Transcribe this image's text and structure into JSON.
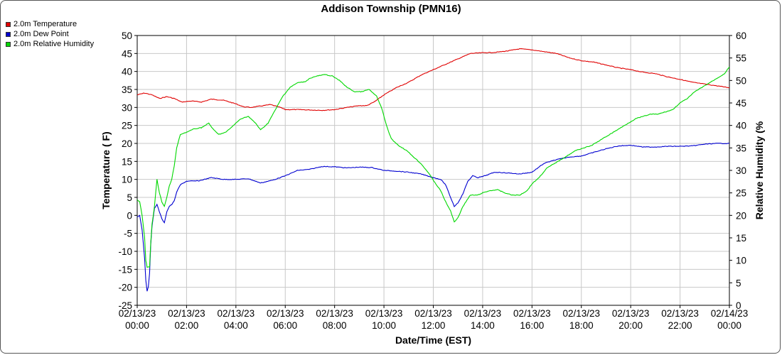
{
  "chart_data": {
    "type": "line",
    "title": "Addison Township (PMN16)",
    "xlabel": "Date/Time (EST)",
    "ylabel": "Temperature ( F)",
    "y2label": "Relative Humidity (%",
    "xlim_hours": [
      0,
      24
    ],
    "ylim": [
      -25,
      50
    ],
    "y2lim": [
      0,
      60
    ],
    "grid": true,
    "legend_position": "top-left",
    "x_tick_labels": [
      {
        "date": "02/13/23",
        "time": "00:00"
      },
      {
        "date": "02/13/23",
        "time": "02:00"
      },
      {
        "date": "02/13/23",
        "time": "04:00"
      },
      {
        "date": "02/13/23",
        "time": "06:00"
      },
      {
        "date": "02/13/23",
        "time": "08:00"
      },
      {
        "date": "02/13/23",
        "time": "10:00"
      },
      {
        "date": "02/13/23",
        "time": "12:00"
      },
      {
        "date": "02/13/23",
        "time": "14:00"
      },
      {
        "date": "02/13/23",
        "time": "16:00"
      },
      {
        "date": "02/13/23",
        "time": "18:00"
      },
      {
        "date": "02/13/23",
        "time": "20:00"
      },
      {
        "date": "02/13/23",
        "time": "22:00"
      },
      {
        "date": "02/14/23",
        "time": "00:00"
      }
    ],
    "y_ticks": [
      50,
      45,
      40,
      35,
      30,
      25,
      20,
      15,
      10,
      5,
      0,
      -5,
      -10,
      -15,
      -20,
      -25
    ],
    "y2_ticks": [
      60,
      55,
      50,
      45,
      40,
      35,
      30,
      25,
      20,
      15,
      10,
      5,
      0
    ],
    "series": [
      {
        "name": "2.0m Temperature",
        "color": "#e00000",
        "axis": "left",
        "points": [
          [
            0,
            33.5
          ],
          [
            0.3,
            34
          ],
          [
            0.6,
            33.5
          ],
          [
            0.9,
            32.5
          ],
          [
            1.2,
            33
          ],
          [
            1.5,
            32.5
          ],
          [
            1.8,
            31.5
          ],
          [
            2.2,
            31.8
          ],
          [
            2.6,
            31.5
          ],
          [
            3,
            32.3
          ],
          [
            3.5,
            32
          ],
          [
            4,
            31
          ],
          [
            4.3,
            30.2
          ],
          [
            4.6,
            30
          ],
          [
            5,
            30.4
          ],
          [
            5.4,
            30.8
          ],
          [
            5.8,
            30
          ],
          [
            6,
            29.4
          ],
          [
            6.5,
            29.4
          ],
          [
            7,
            29.3
          ],
          [
            7.5,
            29.2
          ],
          [
            8,
            29.4
          ],
          [
            8.5,
            30
          ],
          [
            9,
            30.5
          ],
          [
            9.3,
            30.5
          ],
          [
            9.6,
            31.5
          ],
          [
            10,
            33.5
          ],
          [
            10.5,
            35.5
          ],
          [
            11,
            37
          ],
          [
            11.5,
            39
          ],
          [
            12,
            40.5
          ],
          [
            12.5,
            42
          ],
          [
            13,
            43.5
          ],
          [
            13.5,
            45
          ],
          [
            14,
            45.2
          ],
          [
            14.5,
            45.3
          ],
          [
            15,
            45.7
          ],
          [
            15.5,
            46.3
          ],
          [
            16,
            46
          ],
          [
            16.5,
            45.5
          ],
          [
            17,
            45
          ],
          [
            17.5,
            43.8
          ],
          [
            18,
            43
          ],
          [
            18.5,
            42.6
          ],
          [
            19,
            41.8
          ],
          [
            19.5,
            41
          ],
          [
            20,
            40.5
          ],
          [
            20.5,
            39.8
          ],
          [
            21,
            39.4
          ],
          [
            21.5,
            38.5
          ],
          [
            22,
            37.8
          ],
          [
            22.5,
            37
          ],
          [
            23,
            36.5
          ],
          [
            23.5,
            36
          ],
          [
            24,
            35.5
          ]
        ]
      },
      {
        "name": "2.0m Dew Point",
        "color": "#0000d0",
        "axis": "left",
        "points": [
          [
            0,
            -0.5
          ],
          [
            0.1,
            0
          ],
          [
            0.2,
            -4
          ],
          [
            0.3,
            -12
          ],
          [
            0.35,
            -18
          ],
          [
            0.4,
            -21
          ],
          [
            0.45,
            -20
          ],
          [
            0.5,
            -16
          ],
          [
            0.55,
            -8
          ],
          [
            0.6,
            -3
          ],
          [
            0.7,
            2
          ],
          [
            0.8,
            3
          ],
          [
            0.9,
            1
          ],
          [
            1,
            -1
          ],
          [
            1.1,
            -2
          ],
          [
            1.2,
            1
          ],
          [
            1.3,
            2.5
          ],
          [
            1.4,
            3
          ],
          [
            1.5,
            4
          ],
          [
            1.6,
            6.5
          ],
          [
            1.75,
            8.5
          ],
          [
            2,
            9.5
          ],
          [
            2.5,
            9.6
          ],
          [
            3,
            10.5
          ],
          [
            3.5,
            10
          ],
          [
            4,
            10
          ],
          [
            4.5,
            10.2
          ],
          [
            5,
            9
          ],
          [
            5.5,
            9.8
          ],
          [
            6,
            11
          ],
          [
            6.5,
            12.5
          ],
          [
            7,
            12.8
          ],
          [
            7.5,
            13.6
          ],
          [
            8,
            13.5
          ],
          [
            8.5,
            13.2
          ],
          [
            9,
            13.4
          ],
          [
            9.5,
            13.3
          ],
          [
            10,
            12.5
          ],
          [
            10.5,
            12.3
          ],
          [
            11,
            12
          ],
          [
            11.5,
            11.5
          ],
          [
            12,
            10.5
          ],
          [
            12.3,
            10
          ],
          [
            12.5,
            8.5
          ],
          [
            12.7,
            5
          ],
          [
            12.85,
            2.5
          ],
          [
            13,
            3.5
          ],
          [
            13.2,
            6
          ],
          [
            13.4,
            9.5
          ],
          [
            13.6,
            11
          ],
          [
            13.8,
            10.5
          ],
          [
            14,
            10.8
          ],
          [
            14.5,
            12
          ],
          [
            15,
            11.8
          ],
          [
            15.5,
            11.5
          ],
          [
            16,
            12
          ],
          [
            16.5,
            14.5
          ],
          [
            17,
            15.5
          ],
          [
            17.5,
            16.2
          ],
          [
            18,
            16.5
          ],
          [
            18.5,
            17.5
          ],
          [
            19,
            18.5
          ],
          [
            19.5,
            19.3
          ],
          [
            20,
            19.5
          ],
          [
            20.5,
            19
          ],
          [
            21,
            19
          ],
          [
            21.5,
            19.2
          ],
          [
            22,
            19.2
          ],
          [
            22.5,
            19.3
          ],
          [
            23,
            19.8
          ],
          [
            23.5,
            20
          ],
          [
            24,
            20
          ]
        ]
      },
      {
        "name": "2.0m Relative Humidity",
        "color": "#00d800",
        "axis": "right",
        "points": [
          [
            0,
            23.5
          ],
          [
            0.1,
            23
          ],
          [
            0.2,
            20
          ],
          [
            0.3,
            15
          ],
          [
            0.35,
            10
          ],
          [
            0.4,
            8.5
          ],
          [
            0.5,
            8.5
          ],
          [
            0.55,
            14
          ],
          [
            0.6,
            18
          ],
          [
            0.7,
            22
          ],
          [
            0.8,
            28
          ],
          [
            0.9,
            25
          ],
          [
            1,
            23
          ],
          [
            1.1,
            22
          ],
          [
            1.2,
            24
          ],
          [
            1.3,
            26.5
          ],
          [
            1.4,
            28
          ],
          [
            1.5,
            31
          ],
          [
            1.6,
            35
          ],
          [
            1.75,
            38
          ],
          [
            2,
            38.5
          ],
          [
            2.3,
            39.2
          ],
          [
            2.6,
            39.5
          ],
          [
            2.9,
            40.5
          ],
          [
            3.1,
            39
          ],
          [
            3.3,
            38
          ],
          [
            3.6,
            38.5
          ],
          [
            3.9,
            40
          ],
          [
            4.2,
            41.5
          ],
          [
            4.5,
            42
          ],
          [
            4.8,
            40.5
          ],
          [
            5,
            39
          ],
          [
            5.3,
            40.5
          ],
          [
            5.6,
            43.5
          ],
          [
            5.9,
            46.5
          ],
          [
            6.2,
            48.5
          ],
          [
            6.5,
            49.5
          ],
          [
            6.8,
            49.7
          ],
          [
            7,
            50.5
          ],
          [
            7.3,
            51
          ],
          [
            7.6,
            51.3
          ],
          [
            7.9,
            51
          ],
          [
            8.2,
            50
          ],
          [
            8.5,
            48.5
          ],
          [
            8.8,
            47.5
          ],
          [
            9.1,
            47.5
          ],
          [
            9.4,
            48
          ],
          [
            9.7,
            46.5
          ],
          [
            9.9,
            44
          ],
          [
            10.1,
            40
          ],
          [
            10.3,
            37
          ],
          [
            10.6,
            35.5
          ],
          [
            10.9,
            34.5
          ],
          [
            11.2,
            33
          ],
          [
            11.5,
            31.5
          ],
          [
            11.8,
            29.5
          ],
          [
            12.1,
            27
          ],
          [
            12.3,
            25.5
          ],
          [
            12.5,
            23
          ],
          [
            12.7,
            21
          ],
          [
            12.85,
            18.5
          ],
          [
            13,
            19.5
          ],
          [
            13.2,
            22
          ],
          [
            13.5,
            24.5
          ],
          [
            13.8,
            24.5
          ],
          [
            14,
            25
          ],
          [
            14.3,
            25.5
          ],
          [
            14.6,
            25.7
          ],
          [
            14.9,
            25
          ],
          [
            15.2,
            24.5
          ],
          [
            15.5,
            24.5
          ],
          [
            15.8,
            25.5
          ],
          [
            16,
            27
          ],
          [
            16.3,
            28.5
          ],
          [
            16.6,
            30.5
          ],
          [
            16.9,
            31.5
          ],
          [
            17.2,
            32.5
          ],
          [
            17.5,
            33.5
          ],
          [
            17.8,
            34.5
          ],
          [
            18.1,
            35
          ],
          [
            18.4,
            35.5
          ],
          [
            18.7,
            36.5
          ],
          [
            19,
            37.5
          ],
          [
            19.3,
            38.5
          ],
          [
            19.6,
            39.5
          ],
          [
            19.9,
            40.5
          ],
          [
            20.2,
            41.5
          ],
          [
            20.5,
            42
          ],
          [
            20.8,
            42.5
          ],
          [
            21.1,
            42.5
          ],
          [
            21.4,
            43
          ],
          [
            21.7,
            43.5
          ],
          [
            22,
            45
          ],
          [
            22.3,
            46
          ],
          [
            22.6,
            47.5
          ],
          [
            22.9,
            48.5
          ],
          [
            23.2,
            49.5
          ],
          [
            23.5,
            50.5
          ],
          [
            23.8,
            51.5
          ],
          [
            24,
            53
          ]
        ]
      }
    ]
  }
}
